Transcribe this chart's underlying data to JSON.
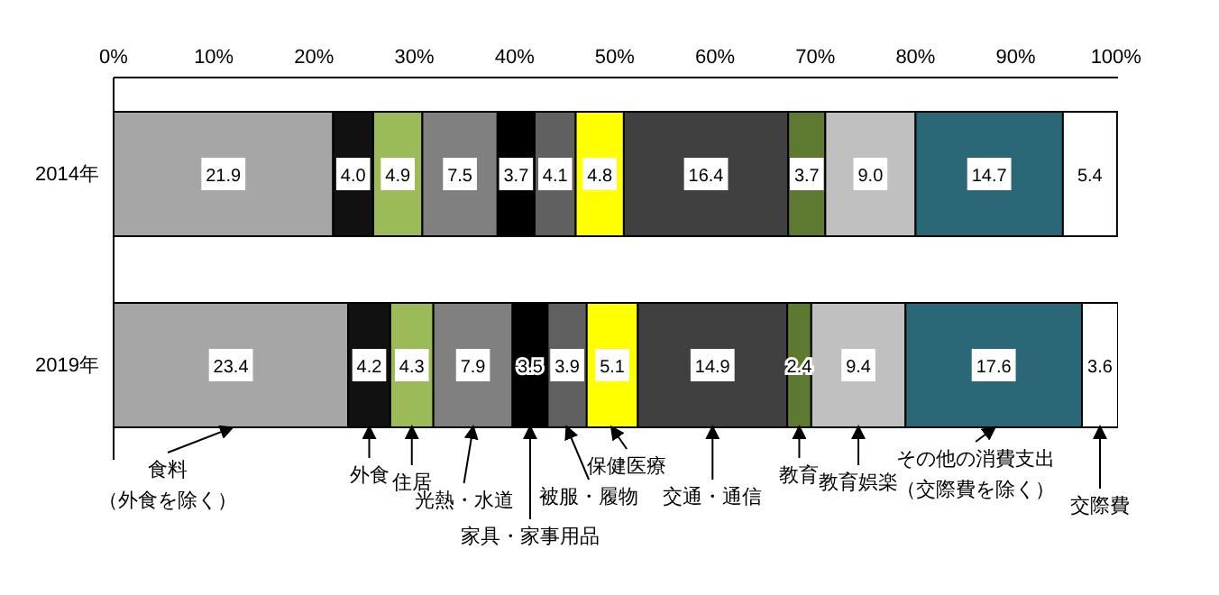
{
  "chart_data": {
    "type": "bar",
    "orientation": "horizontal",
    "stacked": true,
    "categories": [
      "2014年",
      "2019年"
    ],
    "series": [
      {
        "name": "食料（外食を除く）",
        "color": "#a6a6a6",
        "values": [
          21.9,
          23.4
        ],
        "value_labels": [
          "21.9",
          "23.4"
        ]
      },
      {
        "name": "外食",
        "color": "#111111",
        "values": [
          4.0,
          4.2
        ],
        "value_labels": [
          "4.0",
          "4.2"
        ]
      },
      {
        "name": "住居",
        "color": "#9bbb59",
        "values": [
          4.9,
          4.3
        ],
        "value_labels": [
          "4.9",
          "4.3"
        ]
      },
      {
        "name": "光熱・水道",
        "color": "#808080",
        "values": [
          7.5,
          7.9
        ],
        "value_labels": [
          "7.5",
          "7.9"
        ]
      },
      {
        "name": "家具・家事用品",
        "color": "#000000",
        "values": [
          3.7,
          3.5
        ],
        "value_labels": [
          "3.7",
          "3.5"
        ]
      },
      {
        "name": "被服・履物",
        "color": "#606060",
        "values": [
          4.1,
          3.9
        ],
        "value_labels": [
          "4.1",
          "3.9"
        ]
      },
      {
        "name": "保健医療",
        "color": "#ffff00",
        "values": [
          4.8,
          5.1
        ],
        "value_labels": [
          "4.8",
          "5.1"
        ]
      },
      {
        "name": "交通・通信",
        "color": "#404040",
        "values": [
          16.4,
          14.9
        ],
        "value_labels": [
          "16.4",
          "14.9"
        ]
      },
      {
        "name": "教育",
        "color": "#5e7a31",
        "values": [
          3.7,
          2.4
        ],
        "value_labels": [
          "3.7",
          "2.4"
        ]
      },
      {
        "name": "教育娯楽",
        "color": "#c0c0c0",
        "values": [
          9.0,
          9.4
        ],
        "value_labels": [
          "9.0",
          "9.4"
        ]
      },
      {
        "name": "その他の消費支出（交際費を除く）",
        "color": "#2a6878",
        "values": [
          14.7,
          17.6
        ],
        "value_labels": [
          "14.7",
          "17.6"
        ]
      },
      {
        "name": "交際費",
        "color": "#ffffff",
        "values": [
          5.4,
          3.6
        ],
        "value_labels": [
          "5.4",
          "3.6"
        ]
      }
    ],
    "xlim": [
      0,
      100.2
    ],
    "xticks": [
      {
        "value": 0,
        "label": "0%"
      },
      {
        "value": 10,
        "label": "10%"
      },
      {
        "value": 20,
        "label": "20%"
      },
      {
        "value": 30,
        "label": "30%"
      },
      {
        "value": 40,
        "label": "40%"
      },
      {
        "value": 50,
        "label": "50%"
      },
      {
        "value": 60,
        "label": "60%"
      },
      {
        "value": 70,
        "label": "70%"
      },
      {
        "value": 80,
        "label": "80%"
      },
      {
        "value": 90,
        "label": "90%"
      },
      {
        "value": 100,
        "label": "100%"
      }
    ],
    "legend": "bottom",
    "grid": false
  }
}
